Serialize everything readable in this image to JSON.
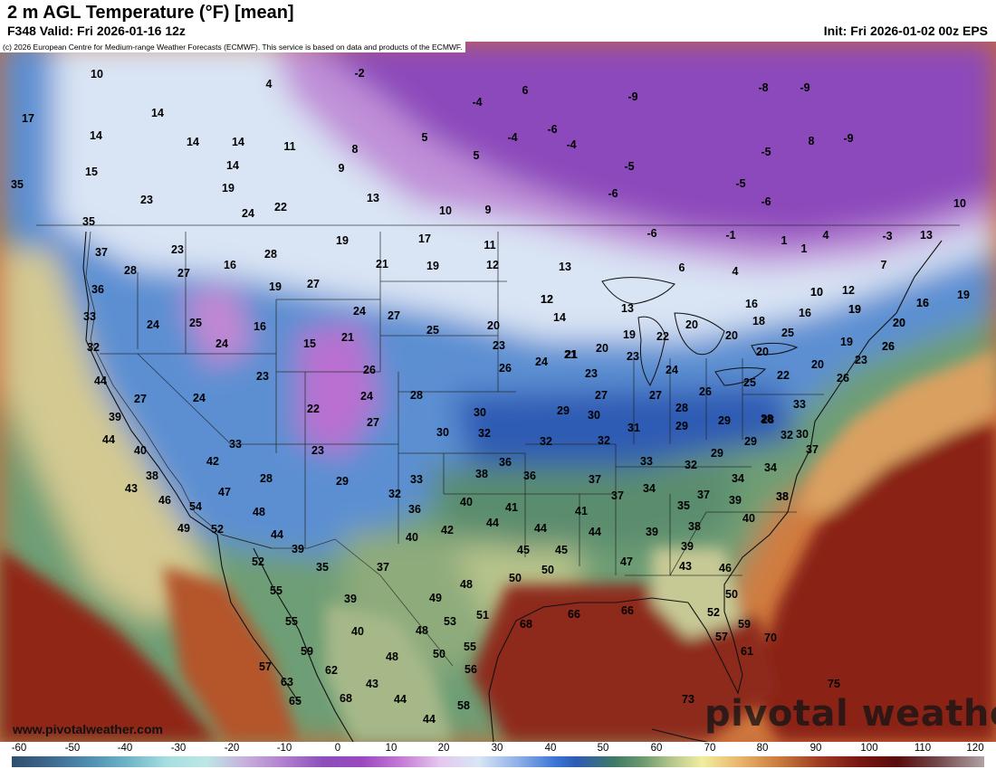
{
  "header": {
    "title": "2 m AGL Temperature (°F) [mean]",
    "valid": "F348 Valid: Fri 2026-01-16 12z",
    "init": "Init: Fri 2026-01-02 00z EPS"
  },
  "copyright": "(c) 2026 European Centre for Medium-range Weather Forecasts (ECMWF). This service is based on data and products of the ECMWF.",
  "website": "www.pivotalweather.com",
  "brand": "pivotal weather",
  "colorbar": {
    "labels": [
      "-60",
      "-50",
      "-40",
      "-30",
      "-20",
      "-10",
      "0",
      "10",
      "20",
      "30",
      "40",
      "50",
      "60",
      "70",
      "80",
      "90",
      "100",
      "110",
      "120"
    ]
  },
  "temperatures": {
    "canada": [
      "10",
      "17",
      "14",
      "14",
      "14",
      "14",
      "15",
      "-2",
      "4",
      "11",
      "8",
      "9",
      "14",
      "19",
      "23",
      "24",
      "22",
      "13",
      "5",
      "10",
      "9",
      "-4",
      "6",
      "-6",
      "-8",
      "-9",
      "-5",
      "-4",
      "-5",
      "5",
      "-4",
      "-9",
      "8",
      "-9",
      "-3",
      "-5",
      "10",
      "13",
      "-6",
      "-1",
      "1",
      "-6",
      "4",
      "7",
      "6",
      "-6",
      "1",
      "4",
      "10",
      "12",
      "16",
      "19",
      "20"
    ],
    "west": [
      "35",
      "35",
      "37",
      "28",
      "23",
      "27",
      "16",
      "28",
      "19",
      "19",
      "27",
      "21",
      "36",
      "33",
      "32",
      "44",
      "39",
      "44",
      "40",
      "27",
      "24",
      "25",
      "24",
      "16",
      "15",
      "21",
      "24",
      "27",
      "24",
      "23",
      "26",
      "24",
      "22",
      "27",
      "23",
      "33",
      "42",
      "28",
      "29",
      "38",
      "43",
      "46",
      "54",
      "47",
      "49",
      "52",
      "48",
      "44",
      "39",
      "52",
      "55",
      "55",
      "59",
      "57",
      "63",
      "65",
      "62",
      "68",
      "40",
      "43",
      "44",
      "44",
      "35",
      "39"
    ],
    "central": [
      "17",
      "11",
      "12",
      "19",
      "20",
      "23",
      "25",
      "26",
      "28",
      "30",
      "30",
      "32",
      "32",
      "33",
      "36",
      "38",
      "36",
      "36",
      "40",
      "40",
      "41",
      "42",
      "44",
      "44",
      "45",
      "48",
      "49",
      "50",
      "53",
      "51",
      "55",
      "56",
      "58",
      "48",
      "50",
      "48",
      "32",
      "37"
    ],
    "east": [
      "13",
      "12",
      "14",
      "13",
      "19",
      "21",
      "22",
      "20",
      "23",
      "23",
      "24",
      "21",
      "27",
      "27",
      "24",
      "28",
      "26",
      "29",
      "29",
      "29",
      "29",
      "30",
      "31",
      "32",
      "33",
      "32",
      "34",
      "34",
      "37",
      "37",
      "34",
      "35",
      "37",
      "38",
      "39",
      "39",
      "38",
      "39",
      "40",
      "41",
      "44",
      "45",
      "47",
      "50",
      "43",
      "46",
      "50",
      "52",
      "59",
      "57",
      "61",
      "70",
      "75",
      "73",
      "68",
      "66",
      "66",
      "26",
      "28",
      "29",
      "32",
      "18",
      "25",
      "20",
      "16",
      "16",
      "20",
      "22",
      "25",
      "28",
      "19",
      "20",
      "23",
      "26",
      "19",
      "20",
      "12",
      "10",
      "16",
      "19",
      "20",
      "26",
      "33",
      "30",
      "37",
      "38"
    ]
  }
}
